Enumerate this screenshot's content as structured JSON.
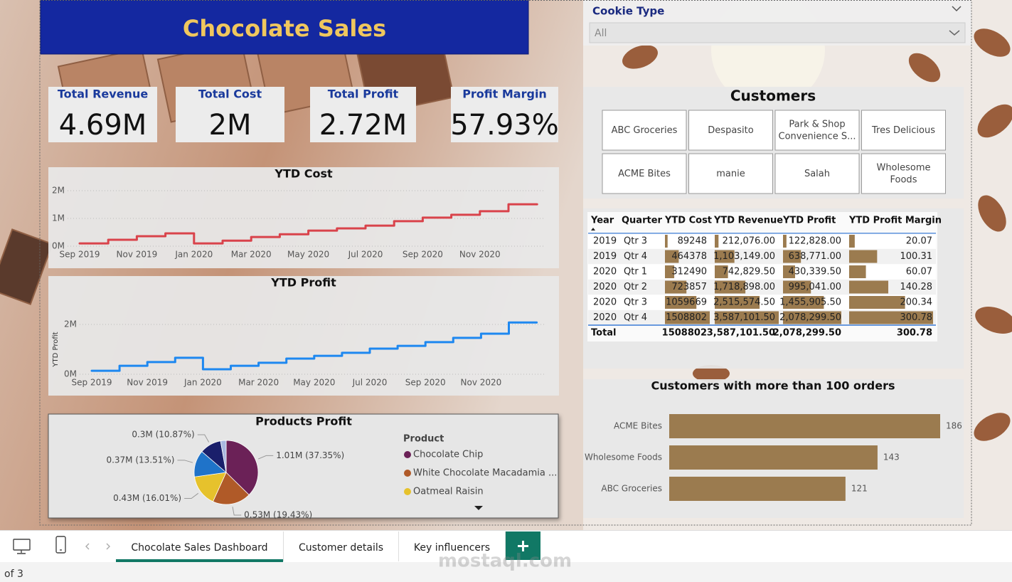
{
  "title": "Chocolate Sales",
  "slicer": {
    "label": "Cookie Type",
    "value": "All"
  },
  "kpis": [
    {
      "label": "Total Revenue",
      "value": "4.69M"
    },
    {
      "label": "Total Cost",
      "value": "2M"
    },
    {
      "label": "Total Profit",
      "value": "2.72M"
    },
    {
      "label": "Profit Margin",
      "value": "57.93%"
    }
  ],
  "customers": {
    "title": "Customers",
    "items": [
      [
        "ABC Groceries"
      ],
      [
        "Despasito"
      ],
      [
        "Park & Shop",
        "Convenience S..."
      ],
      [
        "Tres Delicious"
      ],
      [
        "ACME Bites"
      ],
      [
        "manie"
      ],
      [
        "Salah"
      ],
      [
        "Wholesome",
        "Foods"
      ]
    ]
  },
  "table": {
    "columns": [
      "Year",
      "Quarter",
      "YTD Cost",
      "YTD Revenue",
      "YTD Profit",
      "YTD Profit Margin"
    ],
    "rows": [
      [
        2019,
        "Qtr 3",
        89248,
        {
          "value": 212076,
          "label": "212,076.00"
        },
        {
          "value": 122828,
          "label": "122,828.00"
        },
        20.07
      ],
      [
        2019,
        "Qtr 4",
        464378,
        {
          "value": 1103149,
          "label": "1,103,149.00"
        },
        {
          "value": 638771,
          "label": "638,771.00"
        },
        100.31
      ],
      [
        2020,
        "Qtr 1",
        312490,
        {
          "value": 742829.5,
          "label": "742,829.50"
        },
        {
          "value": 430339.5,
          "label": "430,339.50"
        },
        60.07
      ],
      [
        2020,
        "Qtr 2",
        723857,
        {
          "value": 1718898,
          "label": "1,718,898.00"
        },
        {
          "value": 995041,
          "label": "995,041.00"
        },
        140.28
      ],
      [
        2020,
        "Qtr 3",
        1059669,
        {
          "value": 2515574.5,
          "label": "2,515,574.50"
        },
        {
          "value": 1455905.5,
          "label": "1,455,905.50"
        },
        200.34
      ],
      [
        2020,
        "Qtr 4",
        1508802,
        {
          "value": 3587101.5,
          "label": "3,587,101.50"
        },
        {
          "value": 2078299.5,
          "label": "2,078,299.50"
        },
        300.78
      ]
    ],
    "total": [
      "Total",
      1508802,
      {
        "value": 3587101.5,
        "label": "3,587,101.50"
      },
      {
        "value": 2078299.5,
        "label": "2,078,299.50"
      },
      300.78
    ]
  },
  "chart_data": [
    {
      "type": "line",
      "title": "YTD Cost",
      "color": "#d9434b",
      "x": [
        "Sep 2019",
        "Oct 2019",
        "Nov 2019",
        "Dec 2019",
        "Jan 2020",
        "Feb 2020",
        "Mar 2020",
        "Apr 2020",
        "May 2020",
        "Jun 2020",
        "Jul 2020",
        "Aug 2020",
        "Sep 2020",
        "Oct 2020",
        "Nov 2020",
        "Dec 2020"
      ],
      "values": [
        100000,
        230000,
        360000,
        460000,
        100000,
        200000,
        330000,
        430000,
        560000,
        640000,
        740000,
        900000,
        1030000,
        1130000,
        1260000,
        1510000
      ],
      "xticks": [
        "Sep 2019",
        "Nov 2019",
        "Jan 2020",
        "Mar 2020",
        "May 2020",
        "Jul 2020",
        "Sep 2020",
        "Nov 2020"
      ],
      "ylim": [
        0,
        2000000
      ],
      "yticks": [
        {
          "value": 0,
          "label": "0M"
        },
        {
          "value": 1000000,
          "label": "1M"
        },
        {
          "value": 2000000,
          "label": "2M"
        }
      ],
      "grid": true
    },
    {
      "type": "line",
      "title": "YTD Profit",
      "y_label": "YTD Profit",
      "color": "#1e88f0",
      "x": [
        "Sep 2019",
        "Oct 2019",
        "Nov 2019",
        "Dec 2019",
        "Jan 2020",
        "Feb 2020",
        "Mar 2020",
        "Apr 2020",
        "May 2020",
        "Jun 2020",
        "Jul 2020",
        "Aug 2020",
        "Sep 2020",
        "Oct 2020",
        "Nov 2020",
        "Dec 2020"
      ],
      "values": [
        140000,
        340000,
        490000,
        660000,
        200000,
        340000,
        460000,
        630000,
        740000,
        860000,
        1030000,
        1140000,
        1290000,
        1460000,
        1630000,
        2080000
      ],
      "xticks": [
        "Sep 2019",
        "Nov 2019",
        "Jan 2020",
        "Mar 2020",
        "May 2020",
        "Jul 2020",
        "Sep 2020",
        "Nov 2020"
      ],
      "ylim": [
        0,
        2000000
      ],
      "yticks": [
        {
          "value": 0,
          "label": "0M"
        },
        {
          "value": 2000000,
          "label": "2M"
        }
      ],
      "grid": true
    },
    {
      "type": "pie",
      "title": "Products Profit",
      "legend_title": "Product",
      "categories": [
        "Chocolate Chip",
        "White Chocolate Macadamia ...",
        "Oatmeal Raisin",
        null,
        null,
        null
      ],
      "values": [
        37.35,
        19.43,
        16.01,
        13.51,
        10.87,
        2.83
      ],
      "value_labels": [
        "1.01M (37.35%)",
        "0.53M (19.43%)",
        "0.43M (16.01%)",
        "0.37M (13.51%)",
        "0.3M (10.87%)",
        null
      ],
      "colors": [
        "#6b2157",
        "#b05a28",
        "#e6c22c",
        "#1f73c9",
        "#1a1f6b",
        "#a9b8e0"
      ]
    },
    {
      "type": "bar",
      "orientation": "horizontal",
      "title": "Customers with more than 100 orders",
      "categories": [
        "ACME Bites",
        "Wholesome Foods",
        "ABC Groceries"
      ],
      "values": [
        186,
        143,
        121
      ],
      "color": "#9b7b4f"
    }
  ],
  "tabs": [
    "Chocolate Sales Dashboard",
    "Customer details",
    "Key influencers"
  ],
  "footer": "of 3",
  "watermark": "mostaql.com"
}
